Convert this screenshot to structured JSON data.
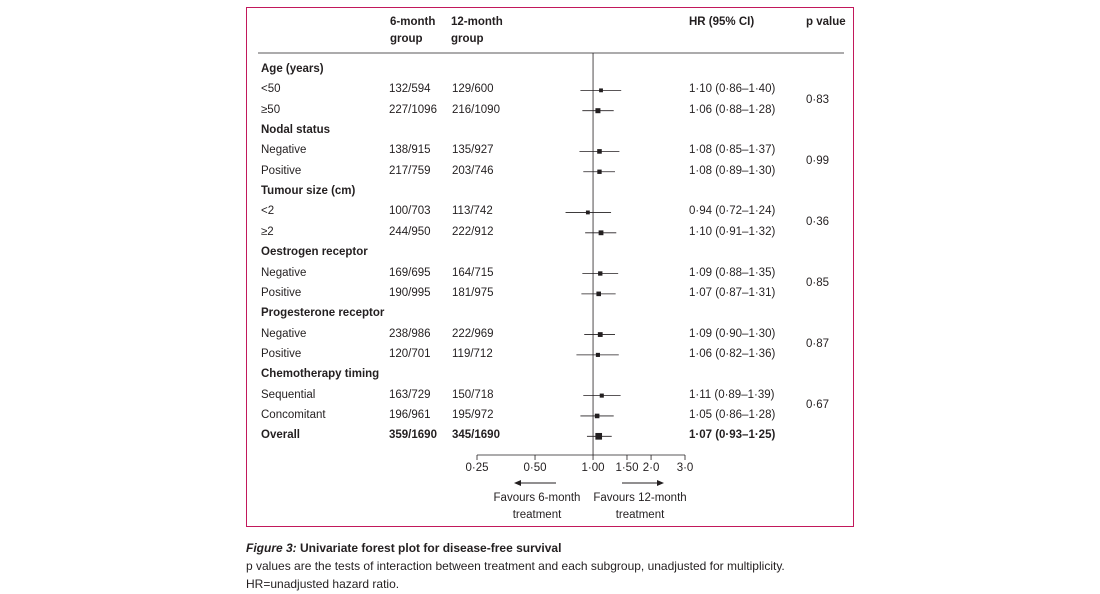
{
  "headers": {
    "col6_line1": "6-month",
    "col6_line2": "group",
    "col12_line1": "12-month",
    "col12_line2": "group",
    "hr": "HR (95% CI)",
    "p": "p value"
  },
  "chart_data": {
    "type": "forest",
    "x_scale": "log",
    "xlim": [
      0.25,
      3.0
    ],
    "reference_line": 1.0,
    "ticks": [
      {
        "value": 0.25,
        "label": "0·25"
      },
      {
        "value": 0.5,
        "label": "0·50"
      },
      {
        "value": 1.0,
        "label": "1·00"
      },
      {
        "value": 1.5,
        "label": "1·50"
      },
      {
        "value": 2.0,
        "label": "2·0"
      },
      {
        "value": 3.0,
        "label": "3·0"
      }
    ],
    "favour_left_line1": "Favours 6-month",
    "favour_left_line2": "treatment",
    "favour_right_line1": "Favours 12-month",
    "favour_right_line2": "treatment",
    "groups": [
      {
        "label": "Age (years)",
        "p": "0·83",
        "rows": [
          {
            "label": "<50",
            "g6": "132/594",
            "g12": "129/600",
            "hr_text": "1·10 (0·86–1·40)",
            "hr": 1.1,
            "lo": 0.86,
            "hi": 1.4,
            "weight": 0.5
          },
          {
            "label": "≥50",
            "g6": "227/1096",
            "g12": "216/1090",
            "hr_text": "1·06 (0·88–1·28)",
            "hr": 1.06,
            "lo": 0.88,
            "hi": 1.28,
            "weight": 1.0
          }
        ]
      },
      {
        "label": "Nodal status",
        "p": "0·99",
        "rows": [
          {
            "label": "Negative",
            "g6": "138/915",
            "g12": "135/927",
            "hr_text": "1·08 (0·85–1·37)",
            "hr": 1.08,
            "lo": 0.85,
            "hi": 1.37,
            "weight": 0.8
          },
          {
            "label": "Positive",
            "g6": "217/759",
            "g12": "203/746",
            "hr_text": "1·08 (0·89–1·30)",
            "hr": 1.08,
            "lo": 0.89,
            "hi": 1.3,
            "weight": 0.7
          }
        ]
      },
      {
        "label": "Tumour size (cm)",
        "p": "0·36",
        "rows": [
          {
            "label": "<2",
            "g6": "100/703",
            "g12": "113/742",
            "hr_text": "0·94 (0·72–1·24)",
            "hr": 0.94,
            "lo": 0.72,
            "hi": 1.24,
            "weight": 0.5
          },
          {
            "label": "≥2",
            "g6": "244/950",
            "g12": "222/912",
            "hr_text": "1·10 (0·91–1·32)",
            "hr": 1.1,
            "lo": 0.91,
            "hi": 1.32,
            "weight": 0.9
          }
        ]
      },
      {
        "label": "Oestrogen receptor",
        "p": "0·85",
        "rows": [
          {
            "label": "Negative",
            "g6": "169/695",
            "g12": "164/715",
            "hr_text": "1·09 (0·88–1·35)",
            "hr": 1.09,
            "lo": 0.88,
            "hi": 1.35,
            "weight": 0.7
          },
          {
            "label": "Positive",
            "g6": "190/995",
            "g12": "181/975",
            "hr_text": "1·07 (0·87–1·31)",
            "hr": 1.07,
            "lo": 0.87,
            "hi": 1.31,
            "weight": 0.8
          }
        ]
      },
      {
        "label": "Progesterone receptor",
        "p": "0·87",
        "rows": [
          {
            "label": "Negative",
            "g6": "238/986",
            "g12": "222/969",
            "hr_text": "1·09 (0·90–1·30)",
            "hr": 1.09,
            "lo": 0.9,
            "hi": 1.3,
            "weight": 0.9
          },
          {
            "label": "Positive",
            "g6": "120/701",
            "g12": "119/712",
            "hr_text": "1·06 (0·82–1·36)",
            "hr": 1.06,
            "lo": 0.82,
            "hi": 1.36,
            "weight": 0.6
          }
        ]
      },
      {
        "label": "Chemotherapy timing",
        "p": "0·67",
        "rows": [
          {
            "label": "Sequential",
            "g6": "163/729",
            "g12": "150/718",
            "hr_text": "1·11 (0·89–1·39)",
            "hr": 1.11,
            "lo": 0.89,
            "hi": 1.39,
            "weight": 0.6
          },
          {
            "label": "Concomitant",
            "g6": "196/961",
            "g12": "195/972",
            "hr_text": "1·05 (0·86–1·28)",
            "hr": 1.05,
            "lo": 0.86,
            "hi": 1.28,
            "weight": 0.8
          }
        ]
      }
    ],
    "overall": {
      "label": "Overall",
      "g6": "359/1690",
      "g12": "345/1690",
      "hr_text": "1·07 (0·93–1·25)",
      "hr": 1.07,
      "lo": 0.93,
      "hi": 1.25,
      "weight": 2.0
    }
  },
  "caption": {
    "figure_label": "Figure 3:",
    "title": " Univariate forest plot for disease-free survival",
    "line1": "p values are the tests of interaction between treatment and each subgroup, unadjusted for multiplicity.",
    "line2": "HR=unadjusted hazard ratio."
  }
}
